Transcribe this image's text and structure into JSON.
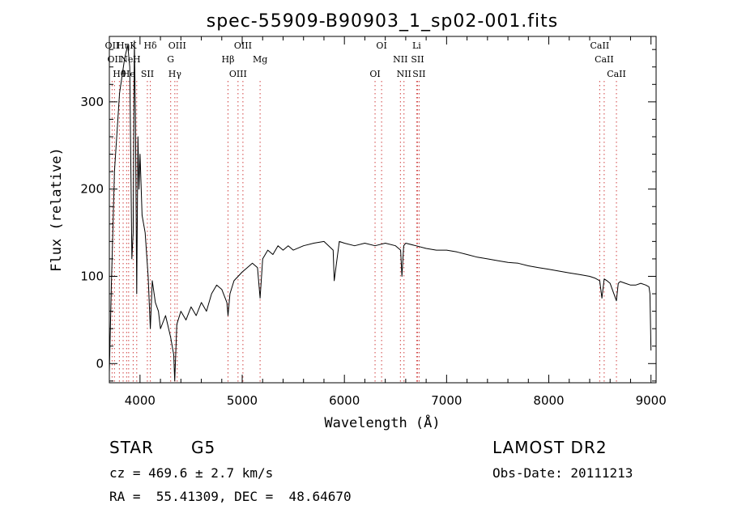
{
  "chart_data": {
    "type": "line",
    "title": "spec-55909-B90903_1_sp02-001.fits",
    "xlabel": "Wavelength (Å)",
    "ylabel": "Flux (relative)",
    "xlim": [
      3700,
      9050
    ],
    "ylim": [
      -22,
      375
    ],
    "xticks": [
      4000,
      5000,
      6000,
      7000,
      8000,
      9000
    ],
    "yticks": [
      0,
      100,
      200,
      300
    ],
    "grid": false,
    "series": [
      {
        "color": "#000000",
        "x": [
          3700,
          3720,
          3750,
          3800,
          3850,
          3880,
          3900,
          3920,
          3933,
          3945,
          3955,
          3968,
          3980,
          3990,
          4000,
          4020,
          4050,
          4080,
          4101,
          4120,
          4150,
          4180,
          4200,
          4250,
          4300,
          4330,
          4340,
          4360,
          4400,
          4450,
          4500,
          4550,
          4600,
          4650,
          4700,
          4750,
          4800,
          4850,
          4861,
          4880,
          4920,
          4960,
          5000,
          5050,
          5100,
          5150,
          5175,
          5200,
          5250,
          5300,
          5350,
          5400,
          5450,
          5500,
          5600,
          5700,
          5800,
          5890,
          5900,
          5950,
          6000,
          6100,
          6200,
          6300,
          6400,
          6500,
          6550,
          6563,
          6580,
          6600,
          6700,
          6800,
          6900,
          7000,
          7100,
          7200,
          7300,
          7400,
          7500,
          7600,
          7700,
          7800,
          7900,
          8000,
          8100,
          8200,
          8300,
          8400,
          8450,
          8498,
          8520,
          8542,
          8570,
          8600,
          8662,
          8680,
          8700,
          8750,
          8800,
          8850,
          8900,
          8950,
          8980,
          8990,
          9000
        ],
        "y": [
          -10,
          90,
          220,
          310,
          350,
          365,
          340,
          120,
          150,
          370,
          285,
          80,
          260,
          200,
          240,
          170,
          150,
          100,
          40,
          95,
          70,
          60,
          40,
          55,
          30,
          10,
          -20,
          45,
          60,
          50,
          65,
          55,
          70,
          60,
          80,
          90,
          85,
          70,
          55,
          80,
          95,
          100,
          105,
          110,
          115,
          110,
          75,
          120,
          130,
          125,
          135,
          130,
          135,
          130,
          135,
          138,
          140,
          130,
          95,
          140,
          138,
          135,
          138,
          135,
          138,
          135,
          130,
          100,
          135,
          138,
          135,
          132,
          130,
          130,
          128,
          125,
          122,
          120,
          118,
          116,
          115,
          112,
          110,
          108,
          106,
          104,
          102,
          100,
          98,
          95,
          75,
          97,
          95,
          92,
          72,
          92,
          94,
          92,
          90,
          90,
          92,
          90,
          88,
          80,
          15
        ]
      }
    ],
    "line_markers": [
      {
        "x": 3727,
        "labels": [
          "OII"
        ]
      },
      {
        "x": 3750,
        "labels": [
          "OII"
        ]
      },
      {
        "x": 3798,
        "labels": [
          "Hθ"
        ]
      },
      {
        "x": 3835,
        "labels": [
          "Hη"
        ]
      },
      {
        "x": 3869,
        "labels": [
          "Ne"
        ]
      },
      {
        "x": 3889,
        "labels": [
          "He"
        ]
      },
      {
        "x": 3933,
        "labels": [
          "K"
        ]
      },
      {
        "x": 3968,
        "labels": [
          "H"
        ]
      },
      {
        "x": 4072,
        "labels": [
          "SII"
        ]
      },
      {
        "x": 4101,
        "labels": [
          "Hδ"
        ]
      },
      {
        "x": 4300,
        "labels": [
          "G"
        ]
      },
      {
        "x": 4341,
        "labels": [
          "Hγ"
        ]
      },
      {
        "x": 4364,
        "labels": [
          "OIII"
        ]
      },
      {
        "x": 4861,
        "labels": [
          "Hβ"
        ]
      },
      {
        "x": 4959,
        "labels": [
          "OIII"
        ]
      },
      {
        "x": 5007,
        "labels": [
          "OIII"
        ]
      },
      {
        "x": 5175,
        "labels": [
          "Mg"
        ]
      },
      {
        "x": 6300,
        "labels": [
          "OI"
        ]
      },
      {
        "x": 6364,
        "labels": [
          "OI"
        ]
      },
      {
        "x": 6548,
        "labels": [
          "NII"
        ]
      },
      {
        "x": 6583,
        "labels": [
          "NII"
        ]
      },
      {
        "x": 6707,
        "labels": [
          "Li"
        ]
      },
      {
        "x": 6716,
        "labels": [
          "SII"
        ]
      },
      {
        "x": 6731,
        "labels": [
          "SII"
        ]
      },
      {
        "x": 8498,
        "labels": [
          "CaII"
        ]
      },
      {
        "x": 8542,
        "labels": [
          "CaII"
        ]
      },
      {
        "x": 8662,
        "labels": [
          "CaII"
        ]
      }
    ]
  },
  "info": {
    "object_type": "STAR",
    "subclass": "G5",
    "survey": "LAMOST DR2",
    "cz": "cz = 469.6 ± 2.7 km/s",
    "obs_date": "Obs-Date: 20111213",
    "coords": "RA =  55.41309, DEC =  48.64670"
  }
}
